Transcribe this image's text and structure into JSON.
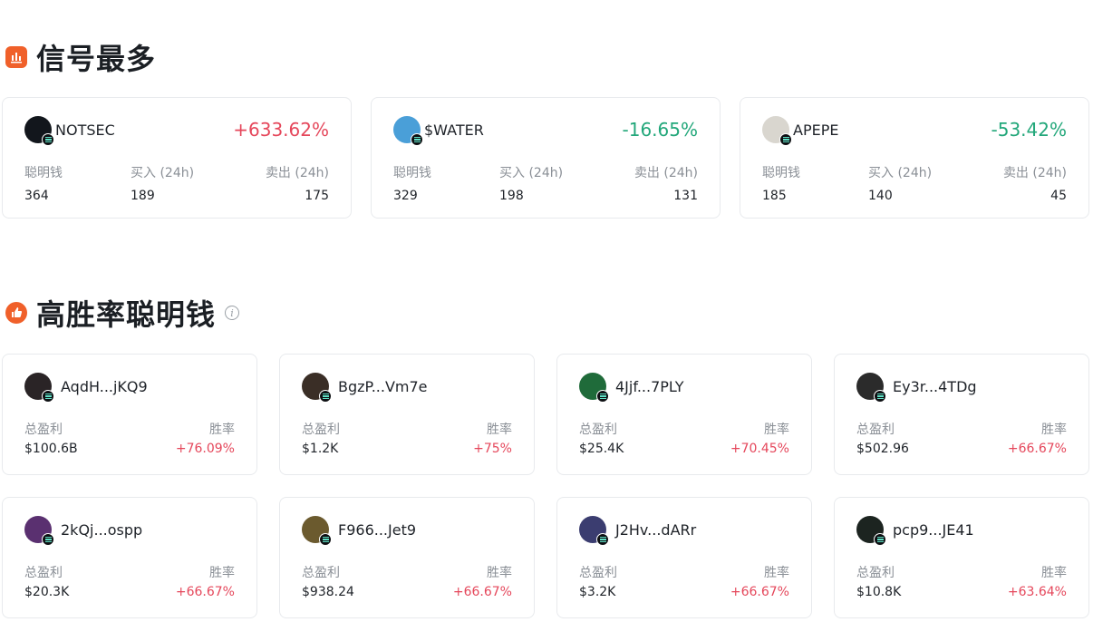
{
  "signals": {
    "title": "信号最多",
    "cards": [
      {
        "name": "NOTSEC",
        "change": "+633.62%",
        "dir": "up",
        "labels": [
          "聪明钱",
          "买入 (24h)",
          "卖出 (24h)"
        ],
        "values": [
          "364",
          "189",
          "175"
        ],
        "avatar_color": "#12161c"
      },
      {
        "name": "$WATER",
        "change": "-16.65%",
        "dir": "down",
        "labels": [
          "聪明钱",
          "买入 (24h)",
          "卖出 (24h)"
        ],
        "values": [
          "329",
          "198",
          "131"
        ],
        "avatar_color": "#4a9fd8"
      },
      {
        "name": "APEPE",
        "change": "-53.42%",
        "dir": "down",
        "labels": [
          "聪明钱",
          "买入 (24h)",
          "卖出 (24h)"
        ],
        "values": [
          "185",
          "140",
          "45"
        ],
        "avatar_color": "#d9d6cf"
      }
    ]
  },
  "smart_money": {
    "title": "高胜率聪明钱",
    "profit_label": "总盈利",
    "rate_label": "胜率",
    "wallets": [
      {
        "addr": "AqdH...jKQ9",
        "profit": "$100.6B",
        "rate": "+76.09%",
        "avatar_color": "#2a2426"
      },
      {
        "addr": "BgzP...Vm7e",
        "profit": "$1.2K",
        "rate": "+75%",
        "avatar_color": "#3a2e26"
      },
      {
        "addr": "4Jjf...7PLY",
        "profit": "$25.4K",
        "rate": "+70.45%",
        "avatar_color": "#1f6b3a"
      },
      {
        "addr": "Ey3r...4TDg",
        "profit": "$502.96",
        "rate": "+66.67%",
        "avatar_color": "#2b2b2b"
      },
      {
        "addr": "2kQj...ospp",
        "profit": "$20.3K",
        "rate": "+66.67%",
        "avatar_color": "#5a3070"
      },
      {
        "addr": "F966...Jet9",
        "profit": "$938.24",
        "rate": "+66.67%",
        "avatar_color": "#6b5a2e"
      },
      {
        "addr": "J2Hv...dARr",
        "profit": "$3.2K",
        "rate": "+66.67%",
        "avatar_color": "#3b3d70"
      },
      {
        "addr": "pcp9...JE41",
        "profit": "$10.8K",
        "rate": "+63.64%",
        "avatar_color": "#1c2420"
      }
    ]
  }
}
